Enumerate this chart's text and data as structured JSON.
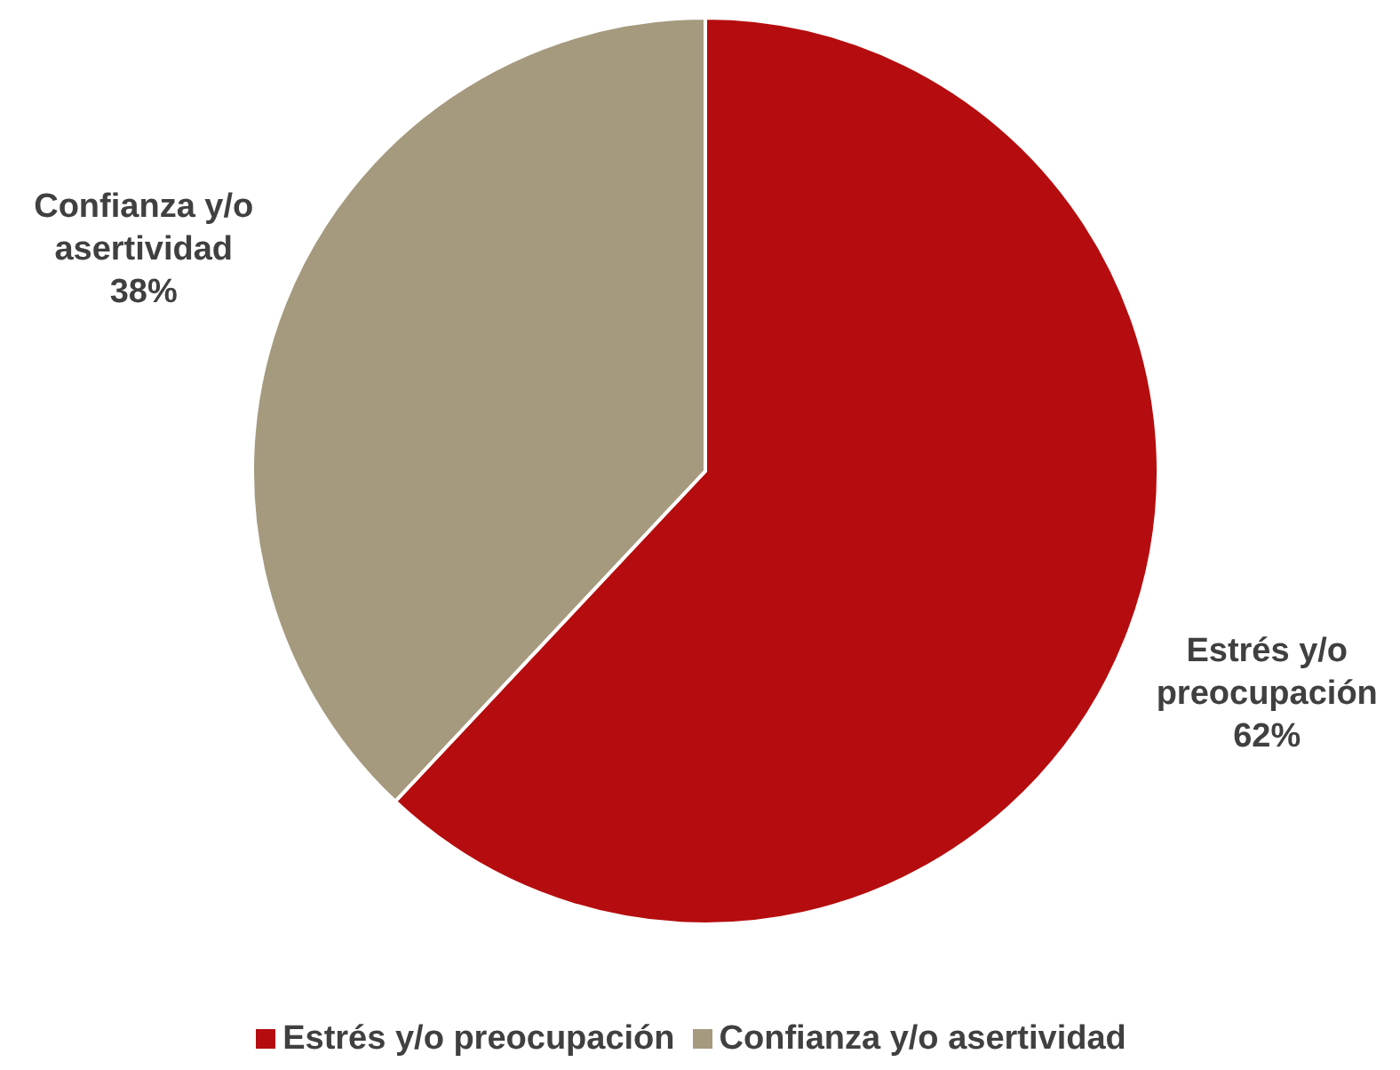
{
  "chart_data": {
    "type": "pie",
    "categories": [
      "Estrés y/o preocupación",
      "Confianza y/o asertividad"
    ],
    "values": [
      62,
      38
    ],
    "colors": [
      "#b50d0f",
      "#a59a7e"
    ],
    "value_labels": [
      "62%",
      "38%"
    ],
    "legend": "bottom"
  }
}
